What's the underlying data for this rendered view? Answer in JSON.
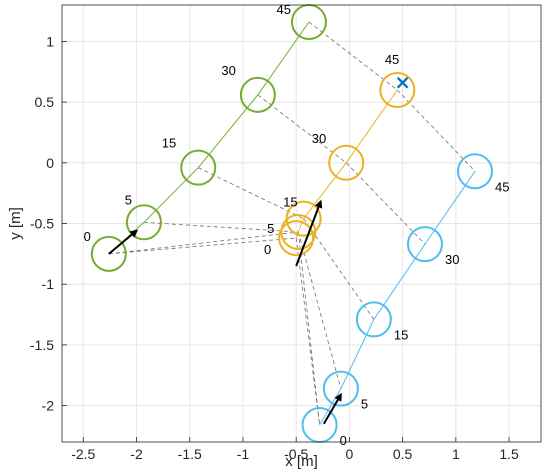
{
  "chart_data": {
    "type": "scatter",
    "xlabel": "x [m]",
    "ylabel": "y [m]",
    "xlim": [
      -2.7,
      1.8
    ],
    "ylim": [
      -2.3,
      1.3
    ],
    "xticks": [
      -2.5,
      -2,
      -1.5,
      -1,
      -0.5,
      0,
      0.5,
      1,
      1.5
    ],
    "xtick_labels": [
      "-2.5",
      "-2",
      "-1.5",
      "-1",
      "-0.5",
      "0",
      "0.5",
      "1",
      "1.5"
    ],
    "yticks": [
      -2,
      -1.5,
      -1,
      -0.5,
      0,
      0.5,
      1
    ],
    "ytick_labels": [
      "-2",
      "-1.5",
      "-1",
      "-0.5",
      "0",
      "0.5",
      "1"
    ],
    "grid": true,
    "series": [
      {
        "color": "#77ac30",
        "points": [
          {
            "t": "0",
            "x": -2.26,
            "y": -0.75
          },
          {
            "t": "5",
            "x": -1.93,
            "y": -0.49
          },
          {
            "t": "15",
            "x": -1.42,
            "y": -0.04
          },
          {
            "t": "30",
            "x": -0.86,
            "y": 0.56
          },
          {
            "t": "45",
            "x": -0.38,
            "y": 1.16
          }
        ],
        "arrow": {
          "from": [
            -2.26,
            -0.75
          ],
          "to": [
            -2.0,
            -0.56
          ]
        }
      },
      {
        "color": "#edb120",
        "points": [
          {
            "t": "0",
            "x": -0.5,
            "y": -0.62
          },
          {
            "t": "5",
            "x": -0.48,
            "y": -0.57
          },
          {
            "t": "15",
            "x": -0.43,
            "y": -0.46
          },
          {
            "t": "30",
            "x": -0.03,
            "y": 0.0
          },
          {
            "t": "45",
            "x": 0.45,
            "y": 0.6
          }
        ],
        "arrow": {
          "from": [
            -0.5,
            -0.85
          ],
          "to": [
            -0.27,
            -0.32
          ]
        },
        "goal": {
          "x": 0.5,
          "y": 0.66,
          "color": "#0072bd"
        }
      },
      {
        "color": "#4dbeee",
        "points": [
          {
            "t": "0",
            "x": -0.28,
            "y": -2.16
          },
          {
            "t": "5",
            "x": -0.08,
            "y": -1.86
          },
          {
            "t": "15",
            "x": 0.23,
            "y": -1.29
          },
          {
            "t": "30",
            "x": 0.71,
            "y": -0.67
          },
          {
            "t": "45",
            "x": 1.18,
            "y": -0.07
          }
        ],
        "arrow": {
          "from": [
            -0.24,
            -2.15
          ],
          "to": [
            -0.08,
            -1.91
          ]
        }
      }
    ],
    "connectors": [
      {
        "t": "0",
        "from": "#77ac30",
        "to": "#edb120",
        "a": [
          -2.26,
          -0.75
        ],
        "b": [
          -0.5,
          -0.62
        ]
      },
      {
        "t": "0",
        "from": "#77ac30",
        "to": "#edb120",
        "a": [
          -2.26,
          -0.75
        ],
        "b": [
          -0.48,
          -0.57
        ]
      },
      {
        "t": "5",
        "from": "#77ac30",
        "to": "#edb120",
        "a": [
          -1.93,
          -0.49
        ],
        "b": [
          -0.48,
          -0.57
        ]
      },
      {
        "t": "15",
        "from": "#77ac30",
        "to": "#edb120",
        "a": [
          -1.42,
          -0.04
        ],
        "b": [
          -0.43,
          -0.46
        ]
      },
      {
        "t": "30",
        "from": "#77ac30",
        "to": "#edb120",
        "a": [
          -0.86,
          0.56
        ],
        "b": [
          -0.03,
          0.0
        ]
      },
      {
        "t": "45",
        "from": "#77ac30",
        "to": "#edb120",
        "a": [
          -0.38,
          1.16
        ],
        "b": [
          0.45,
          0.6
        ]
      },
      {
        "t": "0",
        "from": "#edb120",
        "to": "#4dbeee",
        "a": [
          -0.5,
          -0.62
        ],
        "b": [
          -0.28,
          -2.16
        ]
      },
      {
        "t": "0",
        "from": "#edb120",
        "to": "#4dbeee",
        "a": [
          -0.48,
          -0.57
        ],
        "b": [
          -0.28,
          -2.16
        ]
      },
      {
        "t": "5",
        "from": "#edb120",
        "to": "#4dbeee",
        "a": [
          -0.48,
          -0.57
        ],
        "b": [
          -0.08,
          -1.86
        ]
      },
      {
        "t": "15",
        "from": "#edb120",
        "to": "#4dbeee",
        "a": [
          -0.43,
          -0.46
        ],
        "b": [
          0.23,
          -1.29
        ]
      },
      {
        "t": "30",
        "from": "#edb120",
        "to": "#4dbeee",
        "a": [
          -0.03,
          0.0
        ],
        "b": [
          0.71,
          -0.67
        ]
      },
      {
        "t": "45",
        "from": "#edb120",
        "to": "#4dbeee",
        "a": [
          0.45,
          0.6
        ],
        "b": [
          1.18,
          -0.07
        ]
      }
    ]
  }
}
